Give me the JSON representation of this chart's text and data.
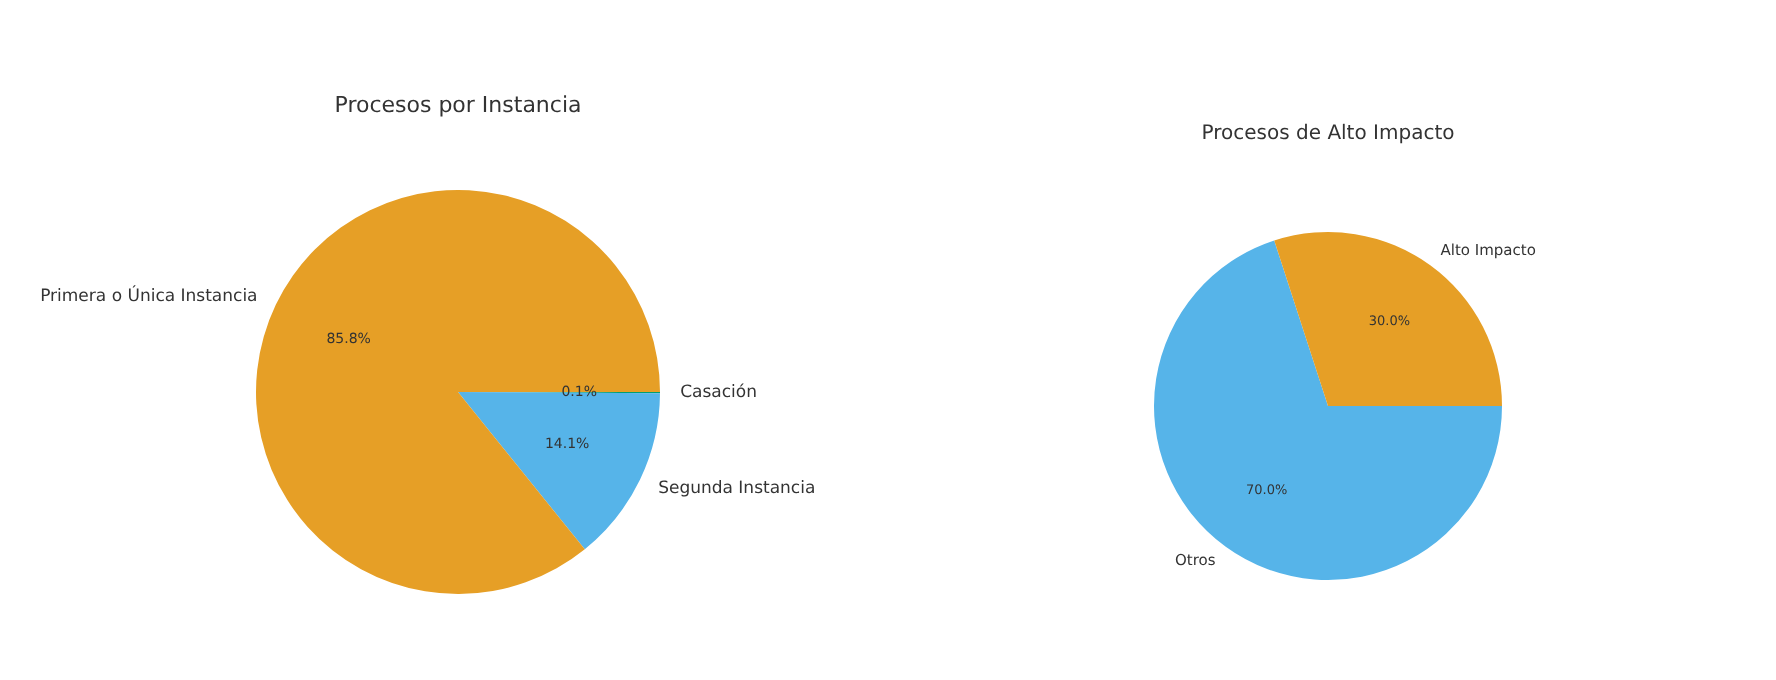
{
  "chart_data": [
    {
      "type": "pie",
      "title": "Procesos por Instancia",
      "categories": [
        "Primera o Única Instancia",
        "Segunda Instancia",
        "Casación"
      ],
      "values": [
        85.8,
        14.1,
        0.1
      ],
      "colors": [
        "#e69f26",
        "#56b4e9",
        "#009e73"
      ],
      "value_labels": [
        "85.8%",
        "14.1%",
        "0.1%"
      ]
    },
    {
      "type": "pie",
      "title": "Procesos de Alto Impacto",
      "categories": [
        "Alto Impacto",
        "Otros"
      ],
      "values": [
        30.0,
        70.0
      ],
      "colors": [
        "#e69f26",
        "#56b4e9"
      ],
      "value_labels": [
        "30.0%",
        "70.0%"
      ]
    }
  ]
}
